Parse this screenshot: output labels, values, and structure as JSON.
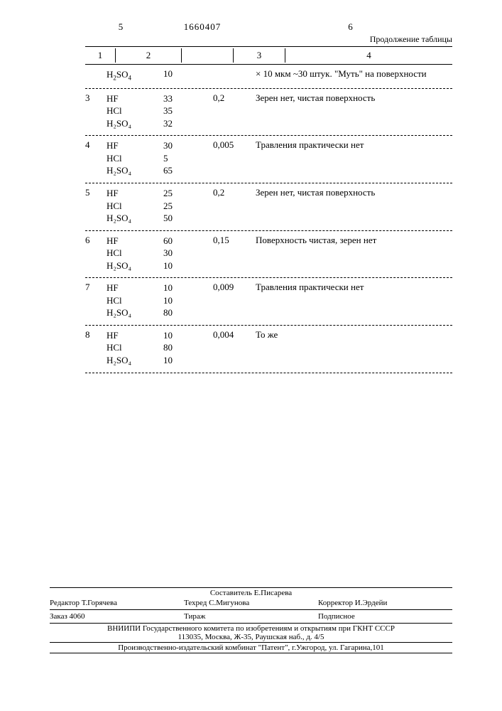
{
  "page_left_num": "5",
  "patent_number": "1660407",
  "page_right_num": "6",
  "continuation_label": "Продолжение таблицы",
  "headers": [
    "1",
    "2",
    "",
    "3",
    "4"
  ],
  "first_row": {
    "chem": "H₂SO₄",
    "val": "10",
    "note": "× 10 мкм ~30 штук. \"Муть\" на поверхности"
  },
  "rows": [
    {
      "n": "3",
      "chems": [
        "HF",
        "HCl",
        "H₂SO₄"
      ],
      "vals": [
        "33",
        "35",
        "32"
      ],
      "c3": "0,2",
      "note": "Зерен нет, чистая поверхность"
    },
    {
      "n": "4",
      "chems": [
        "HF",
        "HCl",
        "H₂SO₄"
      ],
      "vals": [
        "30",
        "5",
        "65"
      ],
      "c3": "0,005",
      "note": "Травления практически нет"
    },
    {
      "n": "5",
      "chems": [
        "HF",
        "HCl",
        "H₂SO₄"
      ],
      "vals": [
        "25",
        "25",
        "50"
      ],
      "c3": "0,2",
      "note": "Зерен нет, чистая поверхность"
    },
    {
      "n": "6",
      "chems": [
        "HF",
        "HCl",
        "H₂SO₄"
      ],
      "vals": [
        "60",
        "30",
        "10"
      ],
      "c3": "0,15",
      "note": "Поверхность чистая, зерен нет"
    },
    {
      "n": "7",
      "chems": [
        "HF",
        "HCl",
        "H₂SO₄"
      ],
      "vals": [
        "10",
        "10",
        "80"
      ],
      "c3": "0,009",
      "note": "Травления практически нет"
    },
    {
      "n": "8",
      "chems": [
        "HF",
        "HCl",
        "H₂SO₄"
      ],
      "vals": [
        "10",
        "80",
        "10"
      ],
      "c3": "0,004",
      "note": "То же"
    }
  ],
  "footer": {
    "compiler": "Составитель Е.Писарева",
    "editor": "Редактор Т.Горячева",
    "tech": "Техред С.Мигунова",
    "corrector": "Корректор И.Эрдейи",
    "order": "Заказ 4060",
    "tirazh": "Тираж",
    "subscription": "Подписное",
    "org": "ВНИИПИ Государственного комитета по изобретениям и открытиям при ГКНТ СССР",
    "address1": "113035, Москва, Ж-35, Раушская наб., д. 4/5",
    "address2": "Производственно-издательский комбинат \"Патент\", г.Ужгород, ул. Гагарина,101"
  }
}
